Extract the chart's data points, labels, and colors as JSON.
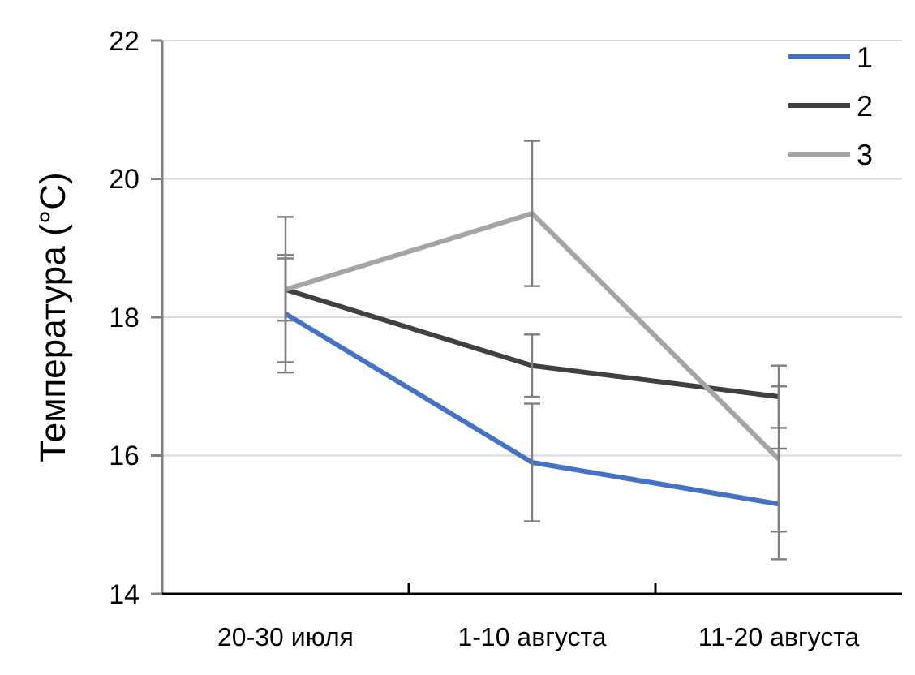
{
  "chart_data": {
    "type": "line",
    "ylabel": "Температура (°C)",
    "categories": [
      "20-30 июля",
      "1-10 августа",
      "11-20 августа"
    ],
    "series": [
      {
        "name": "1",
        "color": "#4472c4",
        "values": [
          18.05,
          15.9,
          15.3
        ],
        "errors": [
          0.85,
          0.85,
          0.8
        ]
      },
      {
        "name": "2",
        "color": "#404040",
        "values": [
          18.4,
          17.3,
          16.85
        ],
        "errors": [
          0.45,
          0.45,
          0.45
        ]
      },
      {
        "name": "3",
        "color": "#a5a5a5",
        "values": [
          18.4,
          19.5,
          15.95
        ],
        "errors": [
          1.05,
          1.05,
          1.05
        ]
      }
    ],
    "ylim": [
      14,
      22
    ],
    "yticks": [
      14,
      16,
      18,
      20,
      22
    ],
    "grid": "y",
    "legend": "top right",
    "marker": "none",
    "line_style": "solid"
  }
}
